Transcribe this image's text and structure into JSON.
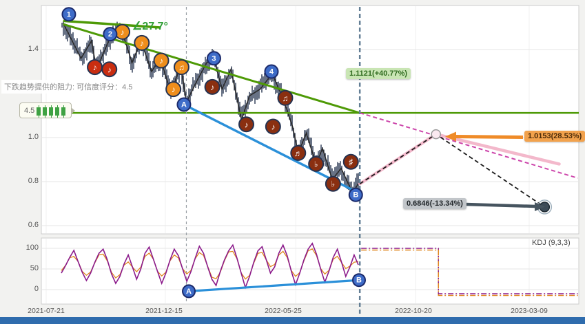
{
  "ui": {
    "tooltip_text": "下跌趋势提供的阻力: 可信度评分：4.5",
    "angle_label": "∠27.7°",
    "rating_score": "4.5",
    "scrollbar_color": "#2f6cad"
  },
  "chart_data": [
    {
      "type": "candlestick",
      "panel": "price",
      "x_start": "2021-07-21",
      "x_tick_labels": [
        "2021-07-21",
        "2021-12-15",
        "2022-05-25",
        "2022-10-20",
        "2023-03-09"
      ],
      "y_tick_labels": [
        "1.4",
        "1.0",
        "0.8",
        "0.6"
      ],
      "y_ticks": [
        1.4,
        1.0,
        0.8,
        0.6
      ],
      "y_range": [
        0.57,
        1.6
      ],
      "current_date": "2022-08-12",
      "current_price": 0.79,
      "vline_date": "2022-01-10",
      "price_swings": [
        [
          "2021-08-11",
          1.52
        ],
        [
          "2021-09-02",
          1.36
        ],
        [
          "2021-09-15",
          1.44
        ],
        [
          "2021-09-21",
          1.31
        ],
        [
          "2021-10-11",
          1.48
        ],
        [
          "2021-10-23",
          1.48
        ],
        [
          "2021-11-04",
          1.34
        ],
        [
          "2021-11-15",
          1.44
        ],
        [
          "2021-11-28",
          1.3
        ],
        [
          "2021-12-09",
          1.36
        ],
        [
          "2021-12-22",
          1.2
        ],
        [
          "2022-01-03",
          1.33
        ],
        [
          "2022-01-10",
          1.16
        ],
        [
          "2022-01-22",
          1.25
        ],
        [
          "2022-02-04",
          1.34
        ],
        [
          "2022-02-13",
          1.36
        ],
        [
          "2022-02-23",
          1.22
        ],
        [
          "2022-03-06",
          1.31
        ],
        [
          "2022-03-19",
          1.08
        ],
        [
          "2022-03-29",
          1.19
        ],
        [
          "2022-04-11",
          1.22
        ],
        [
          "2022-04-26",
          1.29
        ],
        [
          "2022-05-10",
          1.17
        ],
        [
          "2022-05-21",
          1.05
        ],
        [
          "2022-05-28",
          0.93
        ],
        [
          "2022-06-07",
          1.02
        ],
        [
          "2022-06-19",
          0.88
        ],
        [
          "2022-06-27",
          0.95
        ],
        [
          "2022-07-09",
          0.81
        ],
        [
          "2022-07-20",
          0.86
        ],
        [
          "2022-08-03",
          0.75
        ],
        [
          "2022-08-10",
          0.79
        ]
      ],
      "trend_lines": {
        "angle_ref": {
          "from_date": "2021-08-11",
          "from_price": 1.53,
          "to_date": "2021-12-09",
          "to_price": 1.5,
          "color": "#4e9a06"
        },
        "downtrend": {
          "from_date": "2021-08-11",
          "from_price": 1.515,
          "to_date": "2022-08-12",
          "to_price": 1.1121,
          "color": "#4e9a06"
        },
        "resistance_level": {
          "price": 1.1121,
          "color": "#4e9a06"
        },
        "ab_support": {
          "from_date": "2022-01-07",
          "from_price": 1.15,
          "to_date": "2022-08-07",
          "to_price": 0.755,
          "color": "#2b90d9"
        }
      },
      "projections": {
        "downtrend_extension": {
          "to_date": "2023-05-08",
          "to_price": 0.816,
          "color": "#cc44aa"
        },
        "scenario_path": {
          "points": [
            [
              "2022-08-12",
              0.79
            ],
            [
              "2022-11-14",
              1.0153
            ],
            [
              "2023-04-15",
              0.88
            ]
          ],
          "color": "#f3b8cb"
        },
        "target_path": {
          "points": [
            [
              "2022-08-12",
              0.79
            ],
            [
              "2022-11-14",
              1.0153
            ],
            [
              "2023-03-28",
              0.6846
            ]
          ],
          "color": "#1a1a1a"
        },
        "peak": {
          "date": "2022-11-14",
          "price": 1.0153
        },
        "target": {
          "date": "2023-03-28",
          "price": 0.6846
        }
      },
      "badges": {
        "resistance": {
          "text": "1.1121(+40.77%)",
          "bg": "#c9e5b4",
          "fg": "#2f6b1f"
        },
        "peak": {
          "text": "1.0153(28.53%)",
          "bg": "#f2a24d",
          "fg": "#4a2a08"
        },
        "target": {
          "text": "0.6846(-13.34%)",
          "bg": "#c2c6ca",
          "fg": "#23282c"
        }
      },
      "wave_points": [
        {
          "label": "1",
          "date": "2021-08-18",
          "price": 1.56
        },
        {
          "label": "2",
          "date": "2021-10-08",
          "price": 1.47
        },
        {
          "label": "3",
          "date": "2022-02-13",
          "price": 1.36
        },
        {
          "label": "4",
          "date": "2022-04-25",
          "price": 1.3
        },
        {
          "label": "A",
          "date": "2022-01-07",
          "price": 1.15
        },
        {
          "label": "B",
          "date": "2022-08-07",
          "price": 0.74
        }
      ],
      "note_markers": [
        {
          "glyph": "♪",
          "date": "2021-09-19",
          "price": 1.32,
          "color": "#c92d10"
        },
        {
          "glyph": "♪",
          "date": "2021-10-07",
          "price": 1.31,
          "color": "#c92d10"
        },
        {
          "glyph": "♪",
          "date": "2021-10-23",
          "price": 1.48,
          "color": "#ef8e1c"
        },
        {
          "glyph": "♪",
          "date": "2021-11-16",
          "price": 1.43,
          "color": "#ef8e1c"
        },
        {
          "glyph": "♪",
          "date": "2021-12-10",
          "price": 1.35,
          "color": "#ef8e1c"
        },
        {
          "glyph": "♪",
          "date": "2021-12-25",
          "price": 1.22,
          "color": "#ef8e1c"
        },
        {
          "glyph": "♫",
          "date": "2022-01-04",
          "price": 1.32,
          "color": "#ef8e1c"
        },
        {
          "glyph": "♪",
          "date": "2022-02-11",
          "price": 1.23,
          "color": "#8a2f10"
        },
        {
          "glyph": "♪",
          "date": "2022-03-25",
          "price": 1.06,
          "color": "#8a2f10"
        },
        {
          "glyph": "♪",
          "date": "2022-04-27",
          "price": 1.05,
          "color": "#8a2f10"
        },
        {
          "glyph": "♫",
          "date": "2022-05-12",
          "price": 1.18,
          "color": "#8a2f10"
        },
        {
          "glyph": "♬",
          "date": "2022-05-28",
          "price": 0.93,
          "color": "#8a2f10"
        },
        {
          "glyph": "♭",
          "date": "2022-06-19",
          "price": 0.88,
          "color": "#8a2f10"
        },
        {
          "glyph": "♭",
          "date": "2022-07-10",
          "price": 0.79,
          "color": "#8a2f10"
        },
        {
          "glyph": "♯",
          "date": "2022-08-01",
          "price": 0.89,
          "color": "#8a2f10"
        }
      ]
    },
    {
      "type": "line",
      "panel": "indicator",
      "name": "KDJ (9,3,3)",
      "y_tick_labels": [
        "100",
        "50",
        "0"
      ],
      "y_ticks": [
        100,
        50,
        0
      ],
      "series_colors": {
        "k": "#8b1a8b",
        "d": "#e08820"
      },
      "k_values": [
        40,
        58,
        78,
        95,
        68,
        42,
        22,
        40,
        66,
        88,
        98,
        72,
        38,
        15,
        32,
        62,
        84,
        55,
        25,
        50,
        88,
        103,
        74,
        44,
        15,
        40,
        72,
        98,
        82,
        50,
        20,
        44,
        76,
        105,
        88,
        55,
        25,
        10,
        44,
        72,
        94,
        108,
        76,
        40,
        5,
        32,
        66,
        94,
        104,
        72,
        40,
        55,
        88,
        108,
        82,
        44,
        12,
        40,
        72,
        98,
        112,
        86,
        50,
        18,
        45,
        78,
        98,
        66,
        32,
        55,
        84,
        60
      ],
      "projection": {
        "high_value": 100,
        "drop_date": "2022-11-17",
        "low_value": -10,
        "end_date": "2023-05-08"
      },
      "ab_line": {
        "from_date": "2022-01-13",
        "from_value": -4,
        "to_date": "2022-08-11",
        "to_value": 23,
        "color": "#2b90d9",
        "from_label": "A",
        "to_label": "B"
      }
    }
  ]
}
